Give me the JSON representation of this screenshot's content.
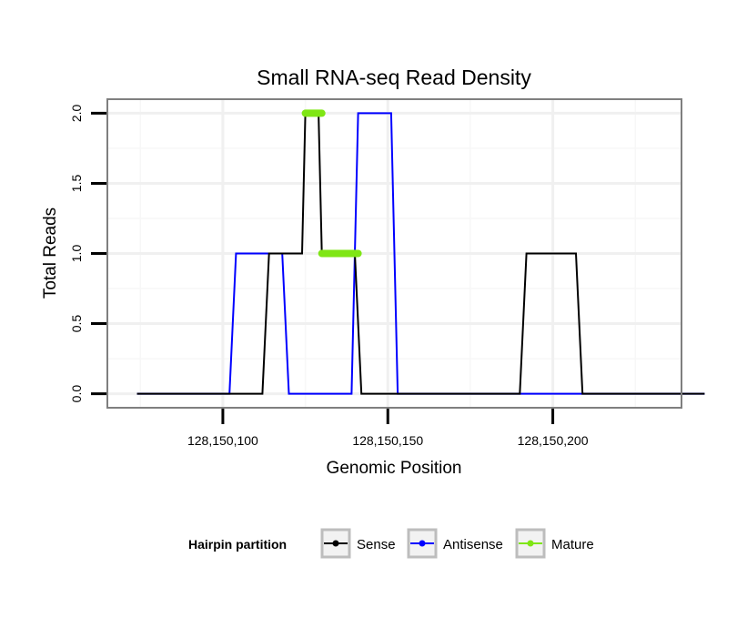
{
  "chart_data": {
    "type": "line",
    "title": "Small RNA-seq Read Density",
    "xlabel": "Genomic Position",
    "ylabel": "Total Reads",
    "xlim": [
      128150065,
      128150239
    ],
    "ylim": [
      -0.1,
      2.1
    ],
    "xticks": [
      128150100,
      128150150,
      128150200
    ],
    "xtick_labels": [
      "128,150,100",
      "128,150,150",
      "128,150,200"
    ],
    "yticks": [
      0,
      0.5,
      1,
      1.5,
      2
    ],
    "ytick_labels": [
      "0.0",
      "0.5",
      "1.0",
      "1.5",
      "2.0"
    ],
    "grid": true,
    "legend": {
      "title": "Hairpin partition",
      "position": "bottom"
    },
    "series": [
      {
        "name": "Sense",
        "color": "#000000",
        "points": [
          [
            128150074,
            0
          ],
          [
            128150112,
            0
          ],
          [
            128150114,
            1
          ],
          [
            128150124,
            1
          ],
          [
            128150125,
            2
          ],
          [
            128150129,
            2
          ],
          [
            128150130,
            1
          ],
          [
            128150140,
            1
          ],
          [
            128150142,
            0
          ],
          [
            128150190,
            0
          ],
          [
            128150192,
            1
          ],
          [
            128150207,
            1
          ],
          [
            128150209,
            0
          ],
          [
            128150246,
            0
          ]
        ]
      },
      {
        "name": "Antisense",
        "color": "#0000ff",
        "points": [
          [
            128150074,
            0
          ],
          [
            128150102,
            0
          ],
          [
            128150104,
            1
          ],
          [
            128150118,
            1
          ],
          [
            128150120,
            0
          ],
          [
            128150139,
            0
          ],
          [
            128150141,
            2
          ],
          [
            128150151,
            2
          ],
          [
            128150153,
            0
          ],
          [
            128150246,
            0
          ]
        ]
      },
      {
        "name": "Mature",
        "color": "#7fe614",
        "segments": [
          [
            [
              128150125,
              2
            ],
            [
              128150130,
              2
            ]
          ],
          [
            [
              128150130,
              1
            ],
            [
              128150141,
              1
            ]
          ]
        ]
      }
    ]
  }
}
